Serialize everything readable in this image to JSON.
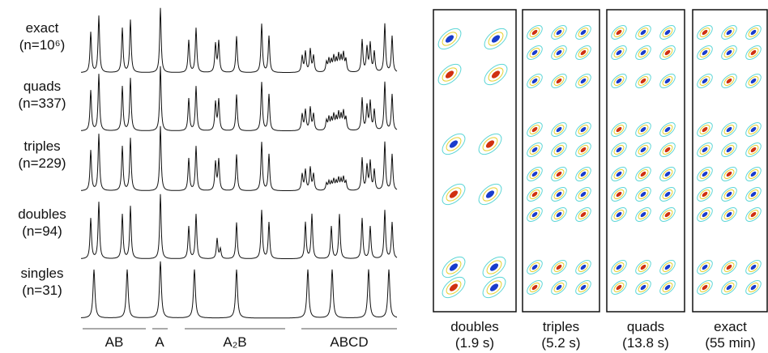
{
  "rows": [
    {
      "name": "exact",
      "count": "(n=10⁶)"
    },
    {
      "name": "quads",
      "count": "(n=337)"
    },
    {
      "name": "triples",
      "count": "(n=229)"
    },
    {
      "name": "doubles",
      "count": "(n=94)"
    },
    {
      "name": "singles",
      "count": "(n=31)"
    }
  ],
  "groups": [
    "AB",
    "A",
    "A₂B",
    "ABCD"
  ],
  "panels": [
    {
      "name": "doubles",
      "time": "(1.9 s)"
    },
    {
      "name": "triples",
      "time": "(5.2 s)"
    },
    {
      "name": "quads",
      "time": "(13.8 s)"
    },
    {
      "name": "exact",
      "time": "(55 min)"
    }
  ]
}
